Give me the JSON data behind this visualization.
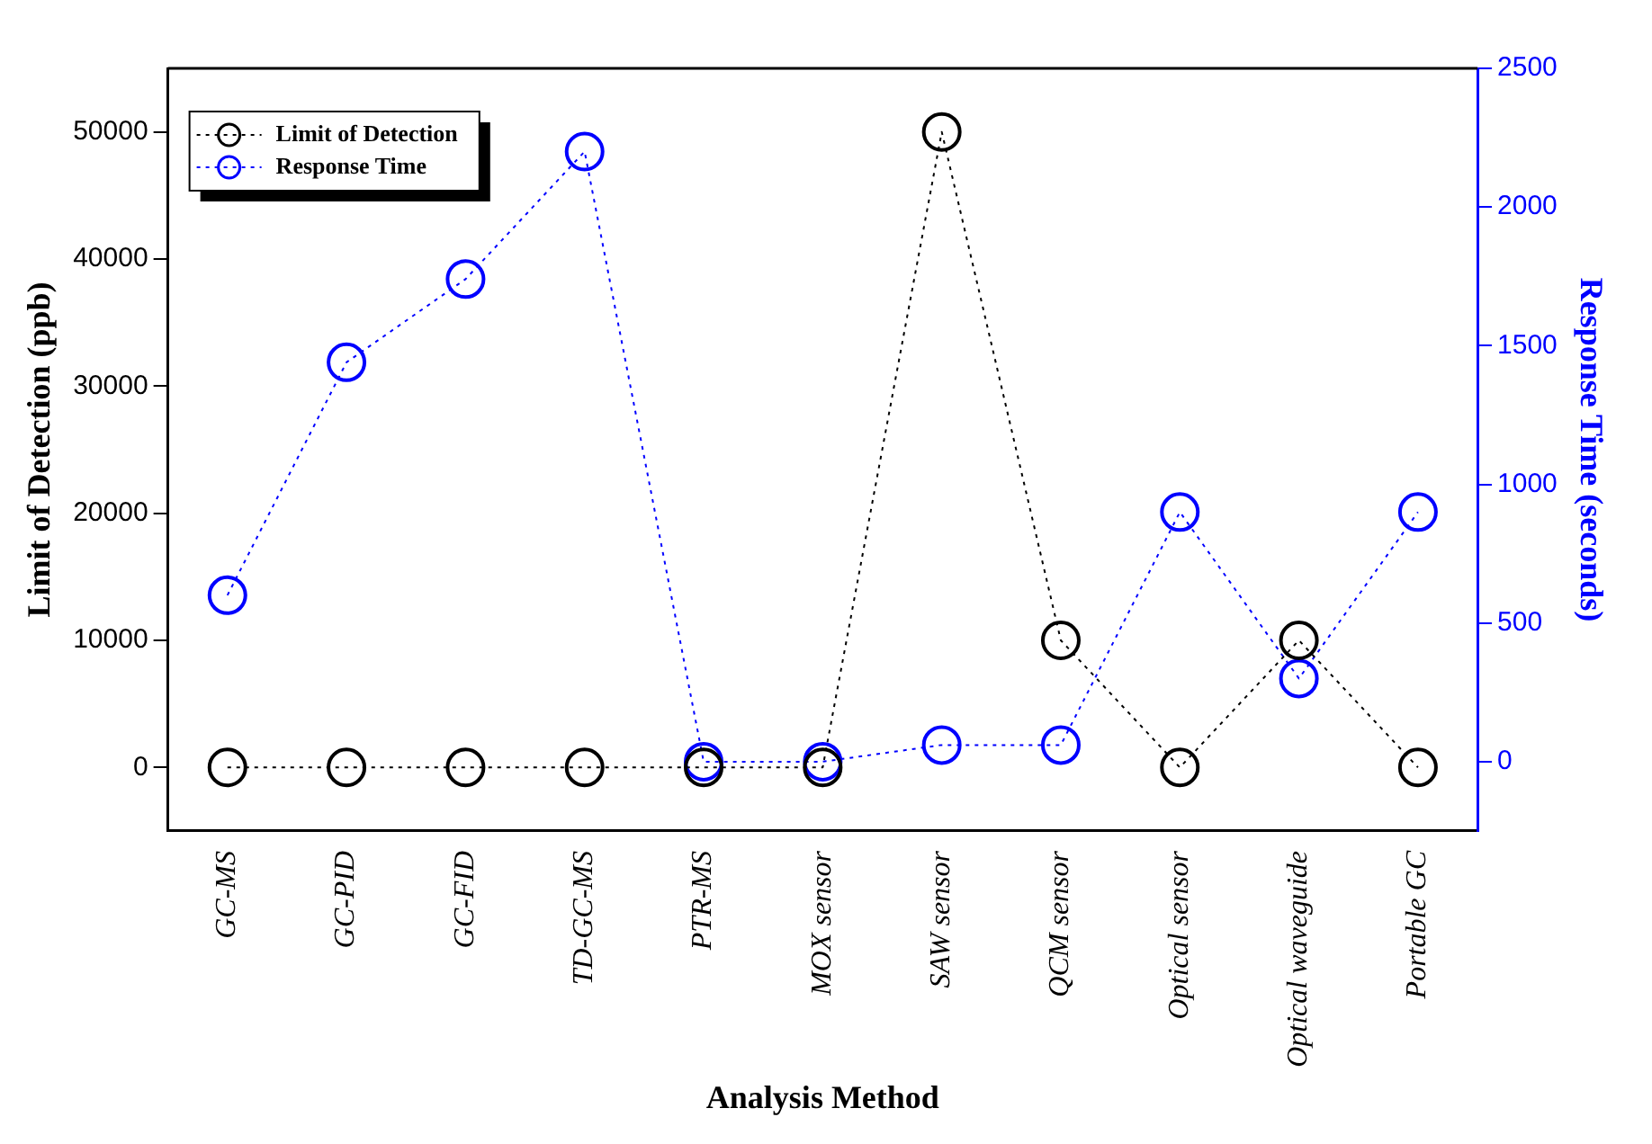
{
  "chart_data": {
    "type": "line",
    "xlabel": "Analysis Method",
    "ylabel": "Limit of Detection (ppb)",
    "y2label": "Response Time (seconds)",
    "categories": [
      "GC-MS",
      "GC-PID",
      "GC-FID",
      "TD-GC-MS",
      "PTR-MS",
      "MOX sensor",
      "SAW sensor",
      "QCM sensor",
      "Optical sensor",
      "Optical waveguide",
      "Portable GC"
    ],
    "series": [
      {
        "name": "Limit of Detection",
        "color": "#000000",
        "values": [
          0,
          0,
          0,
          0,
          0,
          0,
          50000,
          10000,
          0,
          10000,
          0
        ]
      },
      {
        "name": "Response Time",
        "color": "#0000ff",
        "axis": "y2",
        "values": [
          600,
          1440,
          1740,
          2200,
          0,
          0,
          60,
          60,
          900,
          300,
          900
        ]
      }
    ],
    "ylim": [
      -5000,
      55000
    ],
    "yticks": [
      0,
      10000,
      20000,
      30000,
      40000,
      50000
    ],
    "y2lim": [
      -250,
      2500
    ],
    "y2ticks": [
      0,
      500,
      1000,
      1500,
      2000,
      2500
    ],
    "grid": false,
    "legend": "top left",
    "marker": "circle",
    "line_style": "dotted"
  }
}
